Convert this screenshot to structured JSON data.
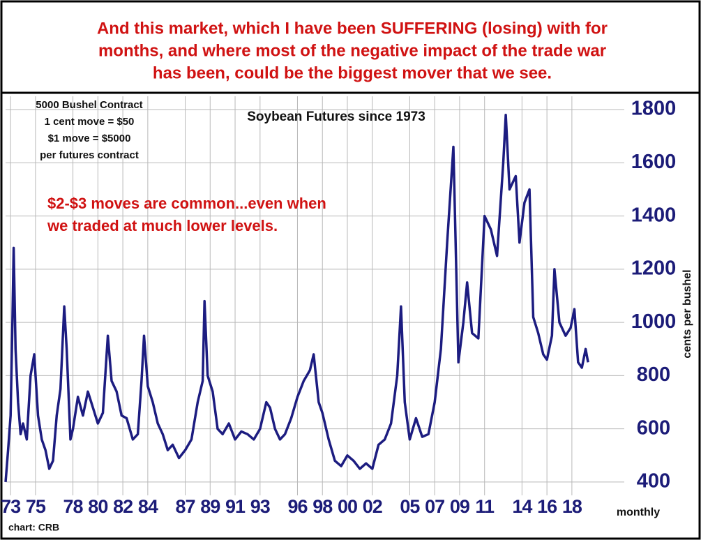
{
  "header": {
    "lines": [
      "And this market, which I have been SUFFERING (losing) with for",
      "months, and where most of the negative impact of the trade war",
      "has been, could be the biggest mover that we see."
    ]
  },
  "chart_data": {
    "type": "line",
    "title": "Soybean Futures since 1973",
    "contract_note": [
      "5000 Bushel Contract",
      "1 cent move = $50",
      "$1 move = $5000",
      "per futures contract"
    ],
    "annotation": [
      "$2-$3 moves are common...even when",
      "we traded at much lower levels."
    ],
    "y_label": "cents per bushel",
    "x_label": "monthly",
    "source": "chart: CRB",
    "color": "#1c1c80",
    "grid": true,
    "xlim": [
      1972.6,
      2022.2
    ],
    "ylim": [
      350,
      1850
    ],
    "yticks": [
      400,
      600,
      800,
      1000,
      1200,
      1400,
      1600,
      1800
    ],
    "xticks": [
      {
        "value": 1973,
        "label": "73"
      },
      {
        "value": 1975,
        "label": "75"
      },
      {
        "value": 1978,
        "label": "78"
      },
      {
        "value": 1980,
        "label": "80"
      },
      {
        "value": 1982,
        "label": "82"
      },
      {
        "value": 1984,
        "label": "84"
      },
      {
        "value": 1987,
        "label": "87"
      },
      {
        "value": 1989,
        "label": "89"
      },
      {
        "value": 1991,
        "label": "91"
      },
      {
        "value": 1993,
        "label": "93"
      },
      {
        "value": 1996,
        "label": "96"
      },
      {
        "value": 1998,
        "label": "98"
      },
      {
        "value": 2000,
        "label": "00"
      },
      {
        "value": 2002,
        "label": "02"
      },
      {
        "value": 2005,
        "label": "05"
      },
      {
        "value": 2007,
        "label": "07"
      },
      {
        "value": 2009,
        "label": "09"
      },
      {
        "value": 2011,
        "label": "11"
      },
      {
        "value": 2014,
        "label": "14"
      },
      {
        "value": 2016,
        "label": "16"
      },
      {
        "value": 2018,
        "label": "18"
      }
    ],
    "x": [
      1972.6,
      1972.8,
      1973.0,
      1973.15,
      1973.25,
      1973.4,
      1973.6,
      1973.8,
      1974.0,
      1974.3,
      1974.6,
      1974.9,
      1975.2,
      1975.5,
      1975.8,
      1976.1,
      1976.4,
      1976.7,
      1977.0,
      1977.3,
      1977.5,
      1977.8,
      1978.0,
      1978.4,
      1978.8,
      1979.2,
      1979.6,
      1980.0,
      1980.4,
      1980.8,
      1981.1,
      1981.5,
      1981.9,
      1982.3,
      1982.8,
      1983.2,
      1983.5,
      1983.7,
      1984.0,
      1984.4,
      1984.8,
      1985.2,
      1985.6,
      1986.0,
      1986.5,
      1987.0,
      1987.5,
      1988.0,
      1988.4,
      1988.55,
      1988.8,
      1989.2,
      1989.6,
      1990.0,
      1990.5,
      1991.0,
      1991.5,
      1992.0,
      1992.5,
      1993.0,
      1993.5,
      1993.8,
      1994.2,
      1994.6,
      1995.0,
      1995.5,
      1996.0,
      1996.5,
      1997.0,
      1997.3,
      1997.7,
      1998.0,
      1998.5,
      1999.0,
      1999.5,
      2000.0,
      2000.5,
      2001.0,
      2001.5,
      2002.0,
      2002.5,
      2003.0,
      2003.5,
      2004.0,
      2004.3,
      2004.6,
      2005.0,
      2005.5,
      2006.0,
      2006.5,
      2007.0,
      2007.5,
      2008.0,
      2008.5,
      2008.9,
      2009.3,
      2009.6,
      2010.0,
      2010.5,
      2011.0,
      2011.5,
      2012.0,
      2012.5,
      2012.7,
      2013.0,
      2013.5,
      2013.8,
      2014.2,
      2014.6,
      2014.9,
      2015.3,
      2015.7,
      2016.0,
      2016.4,
      2016.6,
      2017.0,
      2017.5,
      2017.9,
      2018.2,
      2018.5,
      2018.8,
      2019.1,
      2019.3
    ],
    "values": [
      400,
      520,
      650,
      1000,
      1280,
      900,
      700,
      580,
      620,
      560,
      800,
      880,
      650,
      560,
      520,
      450,
      480,
      650,
      750,
      1060,
      900,
      560,
      600,
      720,
      650,
      740,
      680,
      620,
      660,
      950,
      780,
      740,
      650,
      640,
      560,
      580,
      780,
      950,
      760,
      700,
      620,
      580,
      520,
      540,
      490,
      520,
      560,
      700,
      780,
      1080,
      800,
      740,
      600,
      580,
      620,
      560,
      590,
      580,
      560,
      600,
      700,
      680,
      600,
      560,
      580,
      640,
      720,
      780,
      820,
      880,
      700,
      660,
      560,
      480,
      460,
      500,
      480,
      450,
      470,
      450,
      540,
      560,
      620,
      800,
      1060,
      700,
      560,
      640,
      570,
      580,
      700,
      900,
      1300,
      1660,
      850,
      1000,
      1150,
      960,
      940,
      1400,
      1350,
      1250,
      1600,
      1780,
      1500,
      1550,
      1300,
      1450,
      1500,
      1020,
      960,
      880,
      860,
      950,
      1200,
      1000,
      950,
      980,
      1050,
      850,
      830,
      900,
      850
    ]
  }
}
